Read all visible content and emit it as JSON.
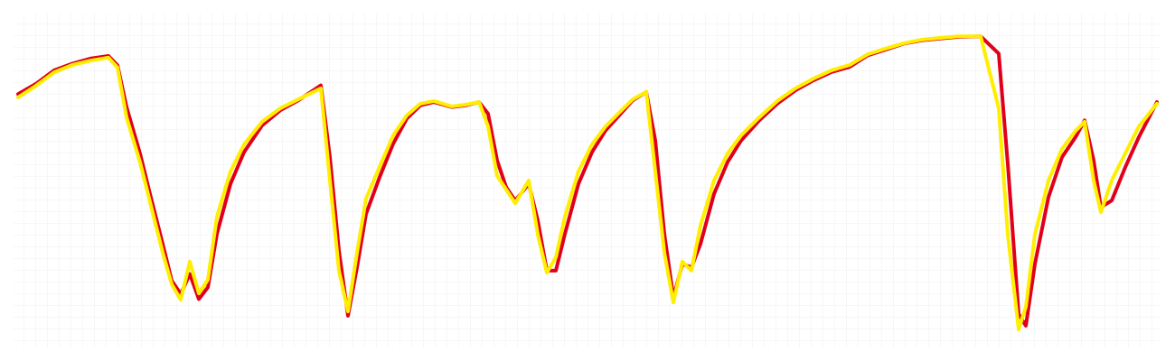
{
  "chart_data": {
    "type": "line",
    "x": [
      20,
      40,
      60,
      80,
      100,
      120,
      130,
      140,
      155,
      165,
      180,
      190,
      200,
      210,
      220,
      230,
      240,
      255,
      270,
      290,
      310,
      330,
      355,
      365,
      375,
      385,
      395,
      405,
      420,
      435,
      450,
      465,
      480,
      500,
      515,
      530,
      540,
      550,
      560,
      570,
      585,
      595,
      605,
      615,
      625,
      640,
      655,
      670,
      685,
      700,
      715,
      725,
      735,
      745,
      755,
      765,
      775,
      790,
      805,
      820,
      840,
      860,
      880,
      900,
      920,
      940,
      960,
      980,
      1000,
      1020,
      1040,
      1060,
      1085,
      1105,
      1115,
      1127,
      1135,
      1145,
      1160,
      1175,
      1190,
      1200,
      1210,
      1218,
      1230,
      1245,
      1260,
      1280
    ],
    "xlim": [
      0,
      1300
    ],
    "ylim": [
      0,
      100
    ],
    "series": [
      {
        "color": "#e0001b",
        "values": [
          75.9,
          79,
          83,
          85,
          86.5,
          87.3,
          84.5,
          72,
          58,
          47,
          31,
          20,
          16,
          22,
          14.5,
          18,
          34,
          49,
          58.5,
          66.5,
          71,
          74,
          78.5,
          57,
          29,
          9.5,
          24,
          40,
          51,
          61,
          68.5,
          72.5,
          73.5,
          72,
          72.5,
          73.5,
          70,
          56,
          48,
          44,
          49,
          38,
          23,
          23,
          34,
          49,
          58.5,
          65,
          69.5,
          74,
          76.5,
          62,
          34,
          15,
          25,
          24,
          31,
          46,
          55.5,
          62,
          68,
          73,
          77,
          80,
          82.5,
          84,
          87.5,
          89.2,
          91,
          92,
          92.5,
          93,
          93.2,
          88,
          55,
          10,
          6.5,
          25,
          45,
          57,
          63,
          68,
          56,
          42,
          44,
          54,
          63,
          73.5
        ]
      },
      {
        "color": "#ffee00",
        "values": [
          74.9,
          78.4,
          82.4,
          84.6,
          85.9,
          86.8,
          83.8,
          68.9,
          55.4,
          44.6,
          28.4,
          18.9,
          14.3,
          25.7,
          16.2,
          20.3,
          39.2,
          52.7,
          60.8,
          67.6,
          71.6,
          74.3,
          77.6,
          50,
          23,
          10.8,
          28.4,
          44.6,
          54.1,
          63.5,
          69.5,
          73,
          73.8,
          72.2,
          72.7,
          73.5,
          66.2,
          51.4,
          47.3,
          43.2,
          50,
          33.8,
          22.4,
          27,
          39.2,
          52.7,
          60.8,
          66.2,
          70.3,
          74.3,
          76.5,
          52.7,
          28.4,
          13.5,
          25.7,
          23,
          36.5,
          50,
          58.1,
          63.5,
          68.9,
          73.8,
          77.6,
          80.5,
          83,
          84.6,
          87.8,
          89.5,
          91.1,
          92.2,
          92.7,
          93.2,
          93.2,
          71.6,
          33.8,
          5.4,
          12.2,
          33.8,
          50,
          59.5,
          64.9,
          67.6,
          50,
          40.5,
          50,
          58.1,
          66.2,
          73
        ]
      }
    ]
  }
}
